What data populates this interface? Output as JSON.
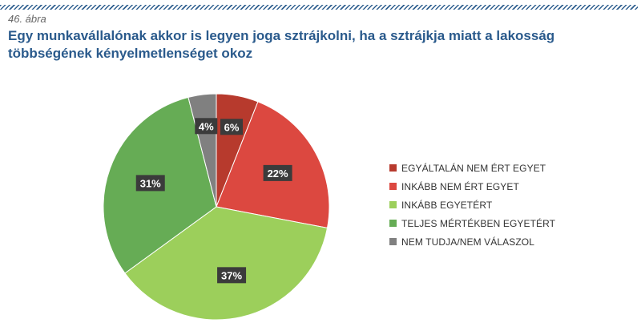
{
  "figure_label": "46. ábra",
  "title": "Egy munkavállalónak akkor is legyen joga sztrájkolni, ha a sztrájkja miatt a lakosság többségének kényelmetlenséget okoz",
  "chart_data": {
    "type": "pie",
    "start_angle_deg": 0,
    "direction": "clockwise",
    "legend_position": "right",
    "slices": [
      {
        "label": "EGYÁLTALÁN NEM ÉRT EGYET",
        "value": 6,
        "display": "6%",
        "color": "#b73a2d"
      },
      {
        "label": "INKÁBB NEM ÉRT EGYET",
        "value": 22,
        "display": "22%",
        "color": "#dc4840"
      },
      {
        "label": "INKÁBB EGYETÉRT",
        "value": 37,
        "display": "37%",
        "color": "#9ccf5b"
      },
      {
        "label": "TELJES MÉRTÉKBEN EGYETÉRT",
        "value": 31,
        "display": "31%",
        "color": "#66ac55"
      },
      {
        "label": "NEM TUDJA/NEM VÁLASZOL",
        "value": 4,
        "display": "4%",
        "color": "#808080"
      }
    ]
  }
}
